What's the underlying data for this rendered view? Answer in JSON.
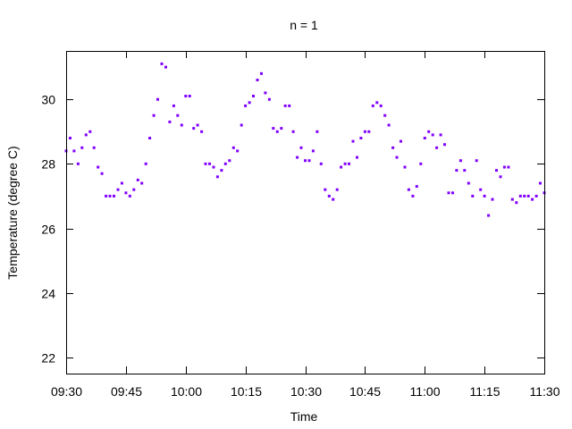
{
  "chart_data": {
    "type": "scatter",
    "title": "n = 1",
    "xlabel": "Time",
    "ylabel": "Temperature (degree C)",
    "xlim": [
      "09:30",
      "11:30"
    ],
    "ylim": [
      21.5,
      31.5
    ],
    "x_ticks": [
      "09:30",
      "09:45",
      "10:00",
      "10:15",
      "10:30",
      "10:45",
      "11:00",
      "11:15",
      "11:30"
    ],
    "y_ticks": [
      22,
      24,
      26,
      28,
      30
    ],
    "grid": false,
    "legend": "none",
    "color": "#8000ff",
    "series": [
      {
        "x": [
          "09:30",
          "09:31",
          "09:32",
          "09:33",
          "09:34",
          "09:35",
          "09:36",
          "09:37",
          "09:38",
          "09:39",
          "09:40",
          "09:41",
          "09:42",
          "09:43",
          "09:44",
          "09:45",
          "09:46",
          "09:47",
          "09:48",
          "09:49",
          "09:50",
          "09:51",
          "09:52",
          "09:53",
          "09:54",
          "09:55",
          "09:56",
          "09:57",
          "09:58",
          "09:59",
          "10:00",
          "10:01",
          "10:02",
          "10:03",
          "10:04",
          "10:05",
          "10:06",
          "10:07",
          "10:08",
          "10:09",
          "10:10",
          "10:11",
          "10:12",
          "10:13",
          "10:14",
          "10:15",
          "10:16",
          "10:17",
          "10:18",
          "10:19",
          "10:20",
          "10:21",
          "10:22",
          "10:23",
          "10:24",
          "10:25",
          "10:26",
          "10:27",
          "10:28",
          "10:29",
          "10:30",
          "10:31",
          "10:32",
          "10:33",
          "10:34",
          "10:35",
          "10:36",
          "10:37",
          "10:38",
          "10:39",
          "10:40",
          "10:41",
          "10:42",
          "10:43",
          "10:44",
          "10:45",
          "10:46",
          "10:47",
          "10:48",
          "10:49",
          "10:50",
          "10:51",
          "10:52",
          "10:53",
          "10:54",
          "10:55",
          "10:56",
          "10:57",
          "10:58",
          "10:59",
          "11:00",
          "11:01",
          "11:02",
          "11:03",
          "11:04",
          "11:05",
          "11:06",
          "11:07",
          "11:08",
          "11:09",
          "11:10",
          "11:11",
          "11:12",
          "11:13",
          "11:14",
          "11:15",
          "11:16",
          "11:17",
          "11:18",
          "11:19",
          "11:20",
          "11:21",
          "11:22",
          "11:23",
          "11:24",
          "11:25",
          "11:26",
          "11:27",
          "11:28",
          "11:29",
          "11:30"
        ],
        "y": [
          28.4,
          28.8,
          28.4,
          28.0,
          28.5,
          28.9,
          29.0,
          28.5,
          27.9,
          27.7,
          27.0,
          27.0,
          27.0,
          27.2,
          27.4,
          27.1,
          27.0,
          27.2,
          27.5,
          27.4,
          28.0,
          28.8,
          29.5,
          30.0,
          31.1,
          31.0,
          29.3,
          29.8,
          29.5,
          29.2,
          30.1,
          30.1,
          29.1,
          29.2,
          29.0,
          28.0,
          28.0,
          27.9,
          27.6,
          27.8,
          28.0,
          28.1,
          28.5,
          28.4,
          29.2,
          29.8,
          29.9,
          30.1,
          30.6,
          30.8,
          30.2,
          30.0,
          29.1,
          29.0,
          29.1,
          29.8,
          29.8,
          29.0,
          28.2,
          28.5,
          28.1,
          28.1,
          28.4,
          29.0,
          28.0,
          27.2,
          27.0,
          26.9,
          27.2,
          27.9,
          28.0,
          28.0,
          28.7,
          28.2,
          28.8,
          29.0,
          29.0,
          29.8,
          29.9,
          29.8,
          29.5,
          29.2,
          28.5,
          28.2,
          28.7,
          27.9,
          27.2,
          27.0,
          27.3,
          28.0,
          28.8,
          29.0,
          28.9,
          28.5,
          28.9,
          28.6,
          27.1,
          27.1,
          27.8,
          28.1,
          27.8,
          27.4,
          27.0,
          28.1,
          27.2,
          27.0,
          26.4,
          26.9,
          27.8,
          27.6,
          27.9,
          27.9,
          26.9,
          26.8,
          27.0,
          27.0,
          27.0,
          26.9,
          27.0,
          27.4,
          27.1
        ]
      }
    ]
  }
}
